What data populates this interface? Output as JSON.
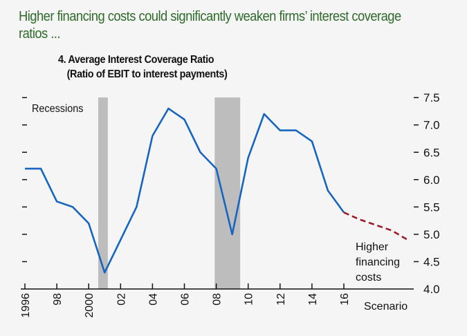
{
  "headline": "Higher financing costs could significantly weaken firms’ interest coverage ratios ...",
  "chart_data": {
    "type": "line",
    "title": "4. Average Interest Coverage Ratio",
    "subtitle": "(Ratio of EBIT to interest payments)",
    "xlabel": "",
    "ylabel": "",
    "ylim": [
      4.0,
      7.5
    ],
    "yticks": [
      "4.0",
      "4.5",
      "5.0",
      "5.5",
      "6.0",
      "6.5",
      "7.0",
      "7.5"
    ],
    "y_axis_side": "right",
    "xticks": [
      {
        "year": 1996,
        "label": "1996"
      },
      {
        "year": 1998,
        "label": "98"
      },
      {
        "year": 2000,
        "label": "2000"
      },
      {
        "year": 2002,
        "label": "02"
      },
      {
        "year": 2004,
        "label": "04"
      },
      {
        "year": 2006,
        "label": "06"
      },
      {
        "year": 2008,
        "label": "08"
      },
      {
        "year": 2010,
        "label": "10"
      },
      {
        "year": 2012,
        "label": "12"
      },
      {
        "year": 2014,
        "label": "14"
      },
      {
        "year": 2016,
        "label": "16"
      }
    ],
    "scenario_label": "Scenario",
    "grid": false,
    "series": [
      {
        "name": "Average interest coverage ratio",
        "color": "#1565c0",
        "style": "solid",
        "x": [
          1996,
          1997,
          1998,
          1999,
          2000,
          2001,
          2002,
          2003,
          2004,
          2005,
          2006,
          2007,
          2008,
          2009,
          2010,
          2011,
          2012,
          2013,
          2014,
          2015,
          2016
        ],
        "values": [
          6.2,
          6.2,
          5.6,
          5.5,
          5.2,
          4.3,
          4.9,
          5.5,
          6.8,
          7.3,
          7.1,
          6.5,
          6.2,
          5.0,
          6.4,
          7.2,
          6.9,
          6.9,
          6.7,
          5.8,
          5.4
        ]
      },
      {
        "name": "Higher financing costs",
        "color": "#9b1b2a",
        "style": "dashed",
        "x": [
          2016,
          2017,
          2018,
          2019,
          2020
        ],
        "values": [
          5.4,
          5.27,
          5.17,
          5.07,
          4.9
        ]
      }
    ],
    "recessions": {
      "label": "Recessions",
      "color": "#bdbdbd",
      "periods": [
        [
          2000.6,
          2001.2
        ],
        [
          2007.9,
          2009.5
        ]
      ]
    },
    "annotations": {
      "recessions": "Recessions",
      "scenario_line1": "Higher",
      "scenario_line2": "financing",
      "scenario_line3": "costs"
    }
  }
}
